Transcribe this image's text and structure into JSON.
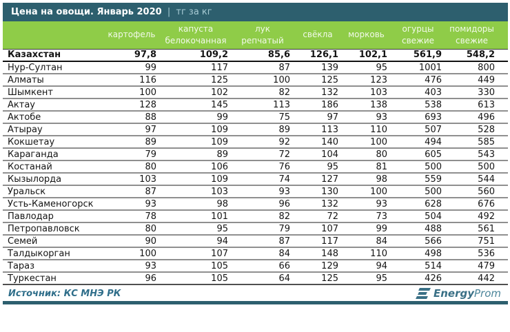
{
  "chart_data": {
    "type": "table",
    "title": "Цена на овощи. Январь 2020",
    "separator": "|",
    "unit": "тг за кг",
    "columns": [
      "картофель",
      "капуста белокочанная",
      "лук репчатый",
      "свёкла",
      "морковь",
      "огурцы свежие",
      "помидоры свежие"
    ],
    "summary_row": {
      "label": "Казахстан",
      "values": [
        "97,8",
        "109,2",
        "85,6",
        "126,1",
        "102,1",
        "561,9",
        "548,2"
      ]
    },
    "rows": [
      {
        "label": "Нур-Султан",
        "values": [
          "99",
          "117",
          "87",
          "139",
          "95",
          "1001",
          "800"
        ]
      },
      {
        "label": "Алматы",
        "values": [
          "116",
          "125",
          "100",
          "125",
          "123",
          "476",
          "449"
        ]
      },
      {
        "label": "Шымкент",
        "values": [
          "100",
          "102",
          "82",
          "132",
          "103",
          "403",
          "330"
        ]
      },
      {
        "label": "Актау",
        "values": [
          "128",
          "145",
          "113",
          "186",
          "138",
          "538",
          "613"
        ]
      },
      {
        "label": "Актобе",
        "values": [
          "88",
          "99",
          "75",
          "97",
          "93",
          "693",
          "496"
        ]
      },
      {
        "label": "Атырау",
        "values": [
          "97",
          "109",
          "89",
          "113",
          "110",
          "507",
          "528"
        ]
      },
      {
        "label": "Кокшетау",
        "values": [
          "89",
          "109",
          "92",
          "140",
          "100",
          "494",
          "585"
        ]
      },
      {
        "label": "Караганда",
        "values": [
          "79",
          "89",
          "72",
          "104",
          "80",
          "605",
          "543"
        ]
      },
      {
        "label": "Костанай",
        "values": [
          "80",
          "106",
          "76",
          "95",
          "81",
          "500",
          "500"
        ]
      },
      {
        "label": "Кызылорда",
        "values": [
          "103",
          "109",
          "74",
          "127",
          "98",
          "559",
          "544"
        ]
      },
      {
        "label": "Уральск",
        "values": [
          "87",
          "103",
          "93",
          "130",
          "100",
          "500",
          "560"
        ]
      },
      {
        "label": "Усть-Каменогорск",
        "values": [
          "93",
          "98",
          "96",
          "132",
          "93",
          "628",
          "676"
        ]
      },
      {
        "label": "Павлодар",
        "values": [
          "78",
          "101",
          "82",
          "72",
          "73",
          "504",
          "492"
        ]
      },
      {
        "label": "Петропавловск",
        "values": [
          "80",
          "95",
          "79",
          "107",
          "99",
          "488",
          "561"
        ]
      },
      {
        "label": "Семей",
        "values": [
          "90",
          "94",
          "87",
          "117",
          "84",
          "566",
          "751"
        ]
      },
      {
        "label": "Талдыкорган",
        "values": [
          "100",
          "107",
          "84",
          "148",
          "110",
          "498",
          "536"
        ]
      },
      {
        "label": "Тараз",
        "values": [
          "93",
          "105",
          "66",
          "129",
          "94",
          "514",
          "479"
        ]
      },
      {
        "label": "Туркестан",
        "values": [
          "96",
          "105",
          "64",
          "125",
          "95",
          "426",
          "442"
        ]
      }
    ]
  },
  "footer": {
    "source": "Источник: КС МНЭ РК",
    "logo_bold": "Energy",
    "logo_light": "Prom"
  },
  "colors": {
    "teal": "#2d5f6e",
    "green": "#8fcc48",
    "row_line": "#8f8f8f",
    "logo": "#3a7086"
  }
}
